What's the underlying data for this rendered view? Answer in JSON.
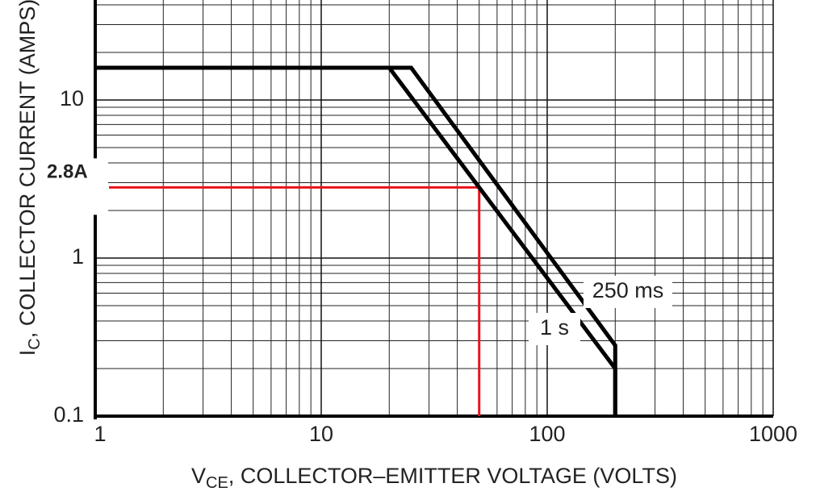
{
  "chart_data": {
    "type": "line",
    "xscale": "log",
    "yscale": "log",
    "x_label": {
      "main": "V",
      "sub": "CE",
      "rest": ", COLLECTOR–EMITTER VOLTAGE (VOLTS)"
    },
    "y_label": {
      "main": "I",
      "sub": "C",
      "rest": ", COLLECTOR CURRENT (AMPS)"
    },
    "xlim": [
      1,
      1000
    ],
    "ylim": [
      0.1,
      40
    ],
    "xticks": [
      1,
      10,
      100,
      1000
    ],
    "yticks": [
      0.1,
      1,
      10
    ],
    "grid": true,
    "minor_grid": true,
    "series": [
      {
        "name": "250 ms",
        "color": "#000000",
        "x": [
          1,
          25,
          200,
          200
        ],
        "values": [
          16,
          16,
          0.28,
          0.1
        ]
      },
      {
        "name": "1 s",
        "color": "#000000",
        "x": [
          1,
          20,
          200,
          200
        ],
        "values": [
          16,
          16,
          0.2,
          0.1
        ]
      }
    ],
    "annotations": [
      {
        "label": "2.8A",
        "x": 50,
        "y": 2.8,
        "color": "#e8141b"
      }
    ]
  }
}
